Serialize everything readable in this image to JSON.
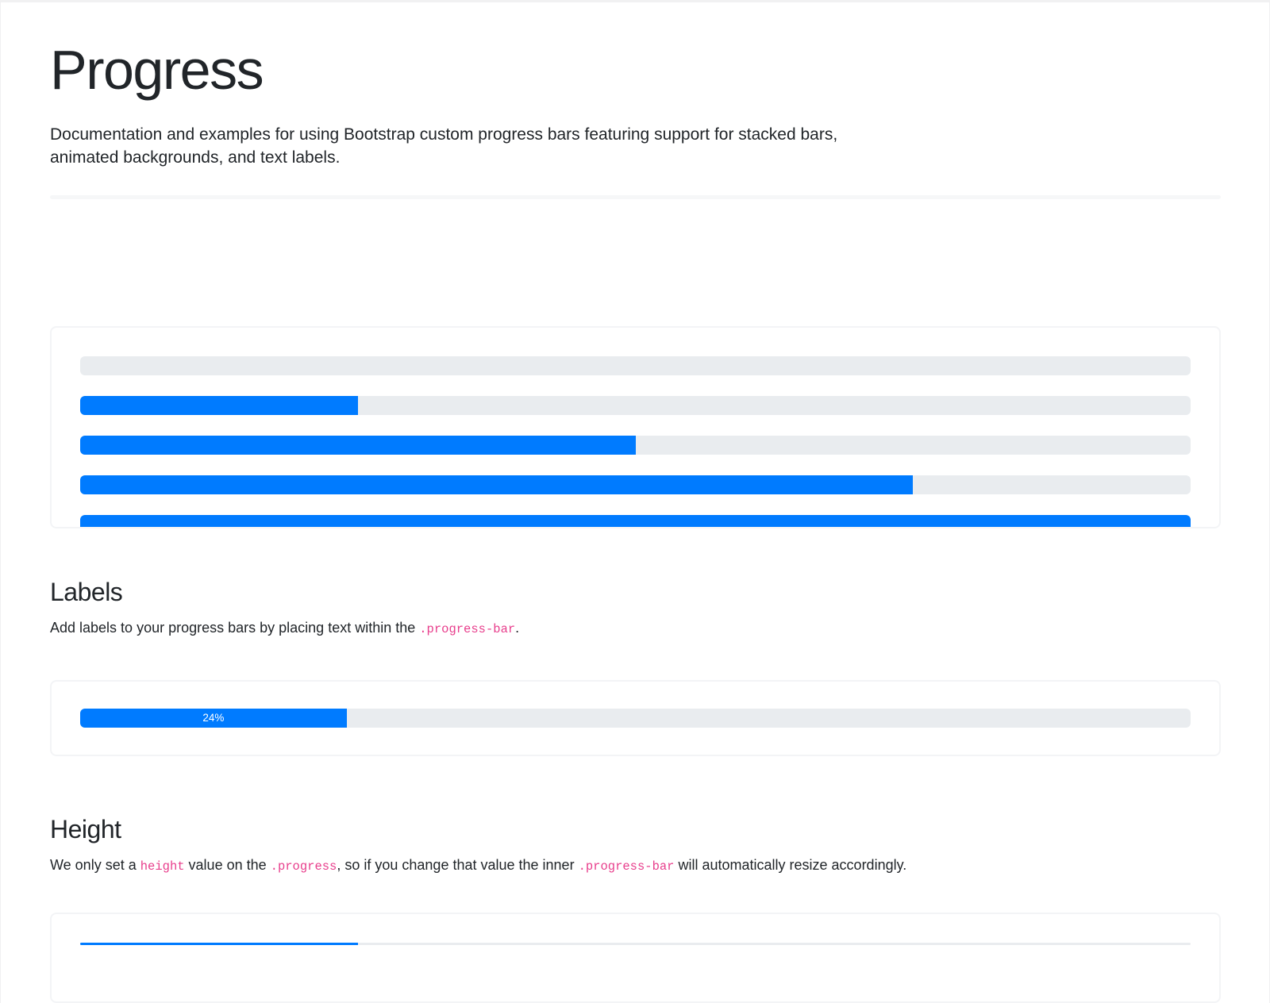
{
  "page": {
    "title": "Progress",
    "lead_lines": [
      "Documentation and examples for using Bootstrap custom progress bars featuring support for stacked bars,",
      "animated backgrounds, and text labels."
    ]
  },
  "colors": {
    "primary_blue": "#007bff",
    "track_gray": "#e9ecef",
    "code_pink": "#e83e8c",
    "text_dark": "#212529"
  },
  "basic_example": {
    "bars": [
      {
        "percent": 0
      },
      {
        "percent": 25
      },
      {
        "percent": 50
      },
      {
        "percent": 75
      },
      {
        "percent": 100
      }
    ]
  },
  "labels_section": {
    "heading": "Labels",
    "paragraph": [
      {
        "text": "Add labels to your progress bars by placing text within the "
      },
      {
        "text": ".progress-bar",
        "code": true
      },
      {
        "text": "."
      }
    ],
    "example_bar": {
      "label": "24%",
      "percent": 24
    }
  },
  "height_section": {
    "heading": "Height",
    "paragraph": [
      {
        "text": "We only set a "
      },
      {
        "text": "height",
        "code": true
      },
      {
        "text": " value on the "
      },
      {
        "text": ".progress",
        "code": true
      },
      {
        "text": ", so if you change that value the inner "
      },
      {
        "text": ".progress-bar",
        "code": true
      },
      {
        "text": " will automatically resize accordingly."
      }
    ],
    "example_bar": {
      "percent": 25
    }
  }
}
